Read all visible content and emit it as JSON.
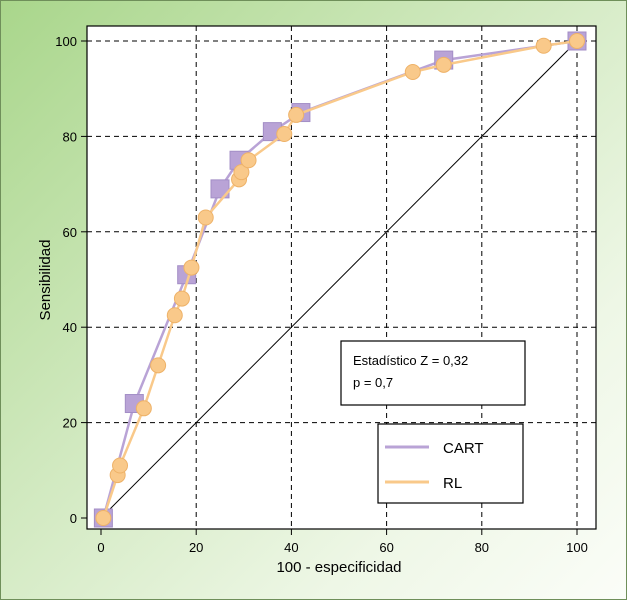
{
  "chart_data": {
    "type": "line",
    "xlabel": "100 - especificidad",
    "ylabel": "Sensibilidad",
    "xlim": [
      0,
      100
    ],
    "ylim": [
      0,
      100
    ],
    "xticks": [
      0,
      20,
      40,
      60,
      80,
      100
    ],
    "yticks": [
      0,
      20,
      40,
      60,
      80,
      100
    ],
    "grid": "dashed",
    "series": [
      {
        "name": "CART",
        "color": "#b9a3d6",
        "marker": "square",
        "x": [
          0.5,
          7,
          18,
          25,
          29,
          36,
          42,
          72,
          100
        ],
        "y": [
          0,
          24,
          51,
          69,
          75,
          81,
          85,
          96,
          100
        ]
      },
      {
        "name": "RL",
        "color": "#f9c98a",
        "marker": "circle",
        "x": [
          0.5,
          3.5,
          4,
          9,
          12,
          15.5,
          17,
          19,
          22,
          29,
          29.5,
          31,
          38.5,
          41,
          65.5,
          72,
          93,
          100
        ],
        "y": [
          0,
          9,
          11,
          23,
          32,
          42.5,
          46,
          52.5,
          63,
          71,
          72.5,
          75,
          80.5,
          84.5,
          93.5,
          95,
          99,
          100
        ]
      }
    ],
    "reference": {
      "x": [
        0,
        100
      ],
      "y": [
        0,
        100
      ]
    },
    "annotation": {
      "line1": "Estadístico Z = 0,32",
      "line2": "p = 0,7"
    },
    "legend_position": "bottom-right"
  }
}
